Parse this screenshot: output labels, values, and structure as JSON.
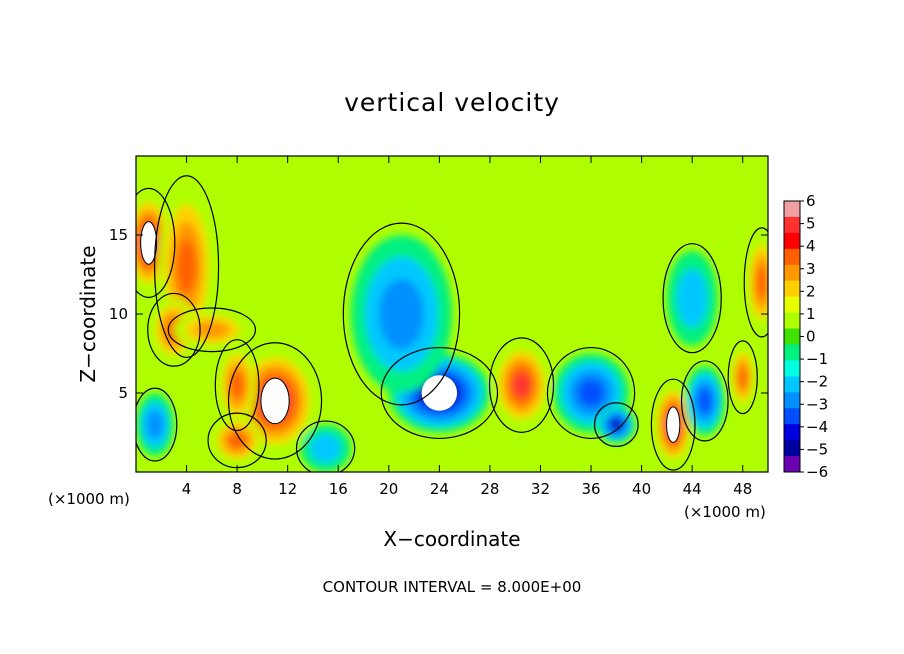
{
  "chart_data": {
    "type": "heatmap",
    "title": "vertical velocity",
    "xlabel": "X−coordinate",
    "ylabel": "Z−coordinate",
    "x_unit_label": "(×1000 m)",
    "footnote": "CONTOUR INTERVAL = 8.000E+00",
    "xlim": [
      0,
      50
    ],
    "ylim": [
      0,
      20
    ],
    "x_ticks": [
      "4",
      "8",
      "12",
      "16",
      "20",
      "24",
      "28",
      "32",
      "36",
      "40",
      "44",
      "48"
    ],
    "y_ticks": [
      "5",
      "10",
      "15"
    ],
    "colorbar": {
      "min": -6,
      "max": 6,
      "tick_labels": [
        "6",
        "5",
        "4",
        "3",
        "2",
        "1",
        "0",
        "−1",
        "−2",
        "−3",
        "−4",
        "−5",
        "−6"
      ],
      "colors": [
        "#f0a0a0",
        "#ff3030",
        "#ff0000",
        "#ff6000",
        "#ff9800",
        "#ffd000",
        "#e8ff00",
        "#b0ff00",
        "#40e000",
        "#00f080",
        "#00ffe0",
        "#00c8ff",
        "#0090ff",
        "#0050ff",
        "#0000e0",
        "#0000a0",
        "#6a00b0"
      ]
    },
    "features": [
      {
        "kind": "updraft",
        "x": 1,
        "z": 14.5,
        "rx": 1.8,
        "rz": 3,
        "w": 6
      },
      {
        "kind": "updraft",
        "x": 4,
        "z": 13,
        "rx": 2.2,
        "rz": 5,
        "w": 4
      },
      {
        "kind": "updraft",
        "x": 3,
        "z": 9,
        "rx": 1.8,
        "rz": 2,
        "w": 4
      },
      {
        "kind": "updraft",
        "x": 11,
        "z": 4.5,
        "rx": 3.2,
        "rz": 3.2,
        "w": 6
      },
      {
        "kind": "updraft",
        "x": 8,
        "z": 5.5,
        "rx": 1.5,
        "rz": 2.5,
        "w": 4
      },
      {
        "kind": "updraft",
        "x": 8,
        "z": 2,
        "rx": 2,
        "rz": 1.5,
        "w": 4
      },
      {
        "kind": "updraft",
        "x": 6,
        "z": 9,
        "rx": 3,
        "rz": 1.2,
        "w": 3
      },
      {
        "kind": "updraft",
        "x": 30.5,
        "z": 5.5,
        "rx": 2.2,
        "rz": 2.6,
        "w": 5
      },
      {
        "kind": "updraft",
        "x": 42.5,
        "z": 3,
        "rx": 1.5,
        "rz": 2.5,
        "w": 6
      },
      {
        "kind": "updraft",
        "x": 49.5,
        "z": 12,
        "rx": 1.2,
        "rz": 3,
        "w": 4
      },
      {
        "kind": "updraft",
        "x": 48,
        "z": 6,
        "rx": 1,
        "rz": 2,
        "w": 4
      },
      {
        "kind": "downdraft",
        "x": 24,
        "z": 5,
        "rx": 4,
        "rz": 2.5,
        "w": -6
      },
      {
        "kind": "downdraft",
        "x": 21,
        "z": 10,
        "rx": 4,
        "rz": 5,
        "w": -3
      },
      {
        "kind": "downdraft",
        "x": 36,
        "z": 5,
        "rx": 3,
        "rz": 2.5,
        "w": -4
      },
      {
        "kind": "downdraft",
        "x": 38,
        "z": 3,
        "rx": 1.5,
        "rz": 1.2,
        "w": -5
      },
      {
        "kind": "downdraft",
        "x": 45,
        "z": 4.5,
        "rx": 1.6,
        "rz": 2.2,
        "w": -4
      },
      {
        "kind": "downdraft",
        "x": 44,
        "z": 11,
        "rx": 2,
        "rz": 3,
        "w": -2
      },
      {
        "kind": "downdraft",
        "x": 1.5,
        "z": 3,
        "rx": 1.5,
        "rz": 2,
        "w": -3
      },
      {
        "kind": "downdraft",
        "x": 15,
        "z": 1.5,
        "rx": 2,
        "rz": 1.5,
        "w": -2
      }
    ]
  }
}
